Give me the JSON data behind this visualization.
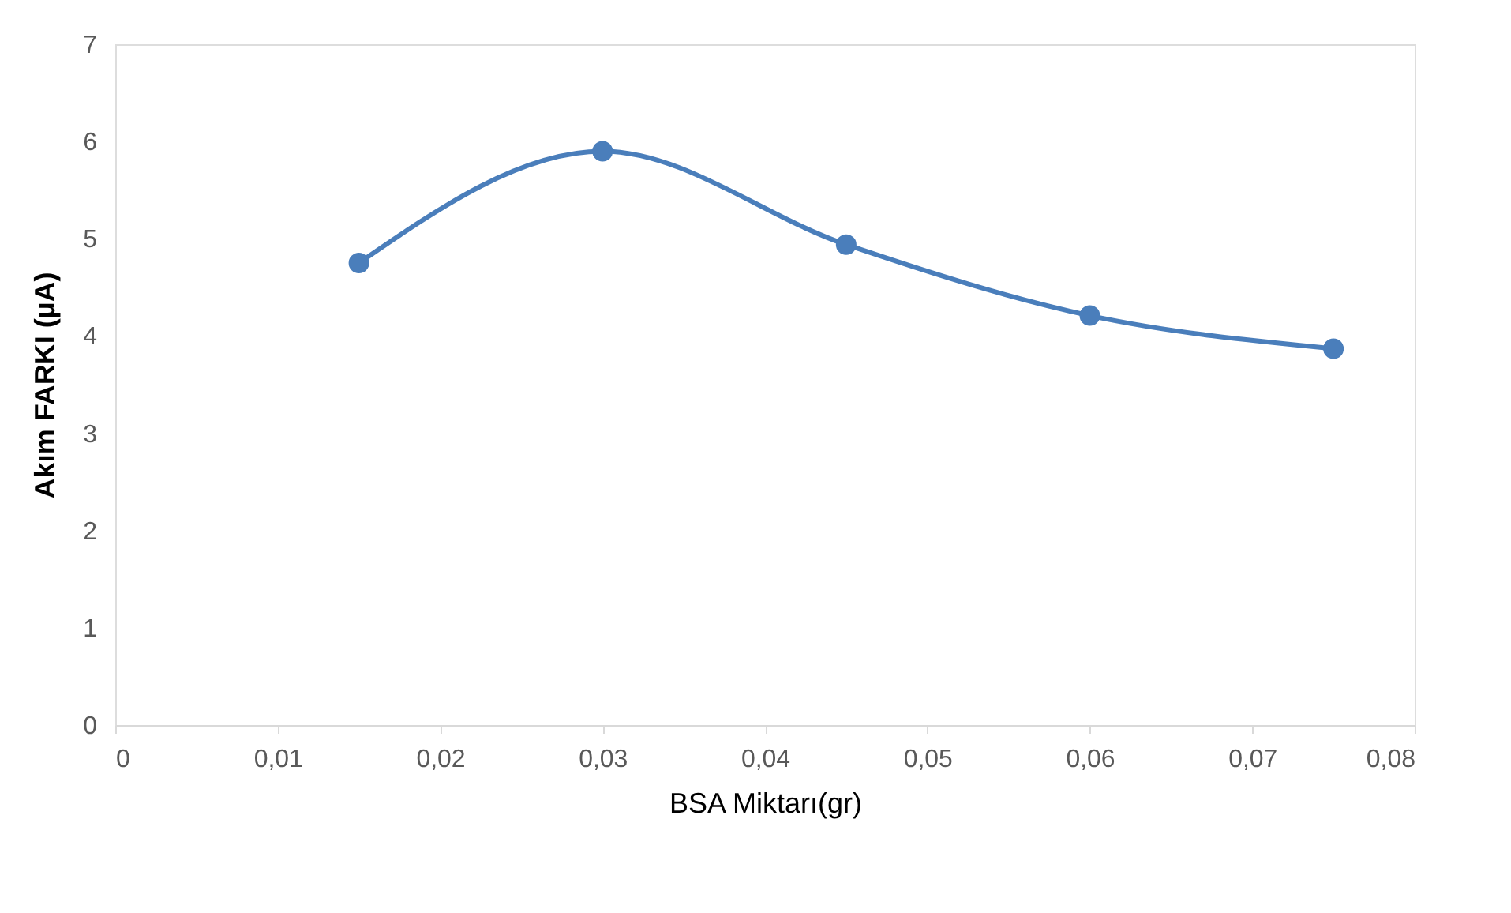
{
  "chart_data": {
    "type": "line",
    "xlabel": "BSA Miktarı(gr)",
    "ylabel": "Akım FARKI (µA)",
    "x": [
      0.015,
      0.03,
      0.045,
      0.06,
      0.075
    ],
    "series": [
      {
        "color": "#4a7ebb",
        "values": [
          4.75,
          5.9,
          4.94,
          4.21,
          3.87
        ]
      }
    ],
    "xlim": [
      0,
      0.08
    ],
    "xticks": [
      0,
      {
        "value": 0.01,
        "label": "0,01"
      },
      {
        "value": 0.02,
        "label": "0,02"
      },
      {
        "value": 0.03,
        "label": "0,03"
      },
      {
        "value": 0.04,
        "label": "0,04"
      },
      {
        "value": 0.05,
        "label": "0,05"
      },
      {
        "value": 0.06,
        "label": "0,06"
      },
      {
        "value": 0.07,
        "label": "0,07"
      },
      {
        "value": 0.08,
        "label": "0,08"
      }
    ],
    "ylim": [
      0,
      7
    ],
    "yticks": [
      0,
      1,
      2,
      3,
      4,
      5,
      6,
      7
    ],
    "grid": false,
    "marker": "circle",
    "line_style": "solid"
  }
}
